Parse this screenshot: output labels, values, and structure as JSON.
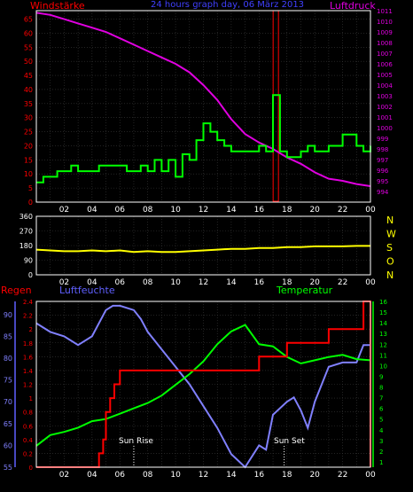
{
  "header": {
    "left_label": "Windstärke",
    "center_title": "24 hours graph day, 06 März 2013",
    "right_label": "Luftdruck"
  },
  "colors": {
    "background": "#000000",
    "grid": "#3a3a3a",
    "frame": "#ffffff",
    "wind": "#00ff00",
    "wind_peak": "#ff0000",
    "pressure": "#e000e0",
    "direction": "#ffff00",
    "rain": "#ff0000",
    "humidity": "#8080ff",
    "temperature": "#00ff00",
    "title_blue": "#4040ff",
    "compass": "#ffff00",
    "bottom_left_label": "#ff0000",
    "humidity_label": "#6060ff",
    "temperature_label": "#00ff00"
  },
  "x_ticks": [
    "02",
    "04",
    "06",
    "08",
    "10",
    "12",
    "14",
    "16",
    "18",
    "20",
    "22",
    "00"
  ],
  "panel_direction": {
    "ticks": [
      "360",
      "270",
      "180",
      "90",
      "0"
    ],
    "compass": [
      "N",
      "W",
      "S",
      "O",
      "N"
    ]
  },
  "panel_bottom": {
    "labels": {
      "rain": "Regen",
      "humidity": "Luftfeuchte",
      "temperature": "Temperatur"
    },
    "annotations": {
      "sunrise": "Sun Rise",
      "sunset": "Sun Set"
    }
  },
  "chart_data": [
    {
      "type": "line",
      "title": "24 hours graph day, 06 März 2013",
      "x_range": [
        0,
        24
      ],
      "y_left": {
        "label": "Windstärke",
        "ylim": [
          0,
          68
        ],
        "ticks": [
          0,
          5,
          10,
          15,
          20,
          25,
          30,
          35,
          40,
          45,
          50,
          55,
          60,
          65
        ]
      },
      "y_right": {
        "label": "Luftdruck",
        "ylim": [
          993,
          1011
        ],
        "ticks": [
          994,
          995,
          996,
          997,
          998,
          999,
          1000,
          1001,
          1002,
          1003,
          1004,
          1005,
          1006,
          1007,
          1008,
          1009,
          1010,
          1011
        ]
      },
      "series": [
        {
          "name": "Windstärke",
          "step": true,
          "x": [
            0,
            0.5,
            1.5,
            2.5,
            3,
            4.5,
            6,
            6.5,
            7.5,
            8,
            8.5,
            9,
            9.5,
            10,
            10.5,
            11,
            11.5,
            12,
            12.5,
            13,
            13.5,
            14,
            15,
            16,
            16.5,
            17,
            17.5,
            18,
            19,
            19.5,
            20,
            21,
            22,
            23,
            23.5,
            24
          ],
          "y": [
            7,
            9,
            11,
            13,
            11,
            13,
            13,
            11,
            13,
            11,
            15,
            11,
            15,
            9,
            17,
            15,
            22,
            28,
            25,
            22,
            20,
            18,
            18,
            20,
            18,
            38,
            18,
            16,
            18,
            20,
            18,
            20,
            24,
            20,
            18,
            20
          ]
        },
        {
          "name": "Luftdruck",
          "axis": "right",
          "x": [
            0,
            1,
            2,
            3,
            4,
            5,
            6,
            7,
            8,
            9,
            10,
            11,
            12,
            13,
            14,
            15,
            16,
            17,
            18,
            19,
            20,
            21,
            22,
            23,
            24
          ],
          "y": [
            1010.8,
            1010.6,
            1010.2,
            1009.8,
            1009.4,
            1009.0,
            1008.4,
            1007.8,
            1007.2,
            1006.6,
            1006.0,
            1005.2,
            1004.0,
            1002.6,
            1000.8,
            999.4,
            998.6,
            998.0,
            997.2,
            996.6,
            995.8,
            995.2,
            995.0,
            994.7,
            994.5
          ]
        }
      ],
      "peak_bar": {
        "x": 17.2,
        "value": 68
      }
    },
    {
      "type": "line",
      "x_range": [
        0,
        24
      ],
      "ylim": [
        0,
        360
      ],
      "ticks": [
        0,
        90,
        180,
        270,
        360
      ],
      "series": [
        {
          "name": "Windrichtung",
          "x": [
            0,
            1,
            2,
            3,
            4,
            5,
            6,
            7,
            8,
            9,
            10,
            11,
            12,
            13,
            14,
            15,
            16,
            17,
            18,
            19,
            20,
            21,
            22,
            23,
            24
          ],
          "y": [
            155,
            150,
            145,
            145,
            150,
            145,
            150,
            140,
            145,
            140,
            140,
            145,
            150,
            155,
            160,
            160,
            165,
            165,
            170,
            170,
            175,
            175,
            175,
            178,
            178
          ]
        }
      ]
    },
    {
      "type": "line",
      "x_range": [
        0,
        24
      ],
      "y_rain": {
        "label": "Regen",
        "ylim": [
          0,
          2.4
        ],
        "ticks": [
          "0",
          "0.2",
          "0.4",
          "0.6",
          "0.8",
          "1",
          "1.2",
          "1.4",
          "1.6",
          "1.8",
          "2",
          "2.2",
          "2.4"
        ]
      },
      "y_humidity": {
        "label": "Luftfeuchte",
        "ylim": [
          55,
          93
        ],
        "ticks": [
          55,
          60,
          65,
          70,
          75,
          80,
          85,
          90
        ]
      },
      "y_temperature": {
        "label": "Temperatur",
        "ylim": [
          0.5,
          16
        ],
        "ticks": [
          1,
          2,
          3,
          4,
          5,
          6,
          7,
          8,
          9,
          10,
          11,
          12,
          13,
          14,
          15,
          16
        ]
      },
      "series": [
        {
          "name": "Regen",
          "step": true,
          "x": [
            0,
            4.5,
            4.8,
            5.0,
            5.3,
            5.6,
            6.0,
            7.0,
            12.5,
            15.0,
            16.0,
            18.0,
            21.0,
            23.5,
            23.8,
            24
          ],
          "y": [
            0,
            0.2,
            0.4,
            0.8,
            1.0,
            1.2,
            1.4,
            1.4,
            1.4,
            1.4,
            1.6,
            1.8,
            2.0,
            2.4,
            2.4,
            0
          ]
        },
        {
          "name": "Luftfeuchte",
          "x": [
            0,
            1,
            2,
            3,
            4,
            5,
            5.5,
            6,
            7,
            7.5,
            8,
            9,
            10,
            11,
            12,
            13,
            14,
            15,
            16,
            16.5,
            17,
            18,
            18.5,
            19,
            19.5,
            20,
            21,
            22,
            23,
            23.5,
            24
          ],
          "y": [
            88,
            86,
            85,
            83,
            85,
            91,
            92,
            92,
            91,
            89,
            86,
            82,
            78,
            74,
            69,
            64,
            58,
            55,
            60,
            59,
            67,
            70,
            71,
            68,
            64,
            70,
            78,
            79,
            79,
            83,
            83
          ]
        },
        {
          "name": "Temperatur",
          "x": [
            0,
            1,
            2,
            3,
            4,
            5,
            6,
            7,
            8,
            9,
            10,
            11,
            12,
            13,
            14,
            15,
            16,
            17,
            18,
            19,
            20,
            21,
            22,
            23,
            24
          ],
          "y": [
            2.5,
            3.5,
            3.8,
            4.2,
            4.8,
            5.0,
            5.5,
            6.0,
            6.5,
            7.2,
            8.2,
            9.2,
            10.4,
            12.0,
            13.2,
            13.8,
            12.0,
            11.8,
            10.8,
            10.2,
            10.5,
            10.8,
            11.0,
            10.6,
            10.5
          ]
        }
      ]
    }
  ]
}
